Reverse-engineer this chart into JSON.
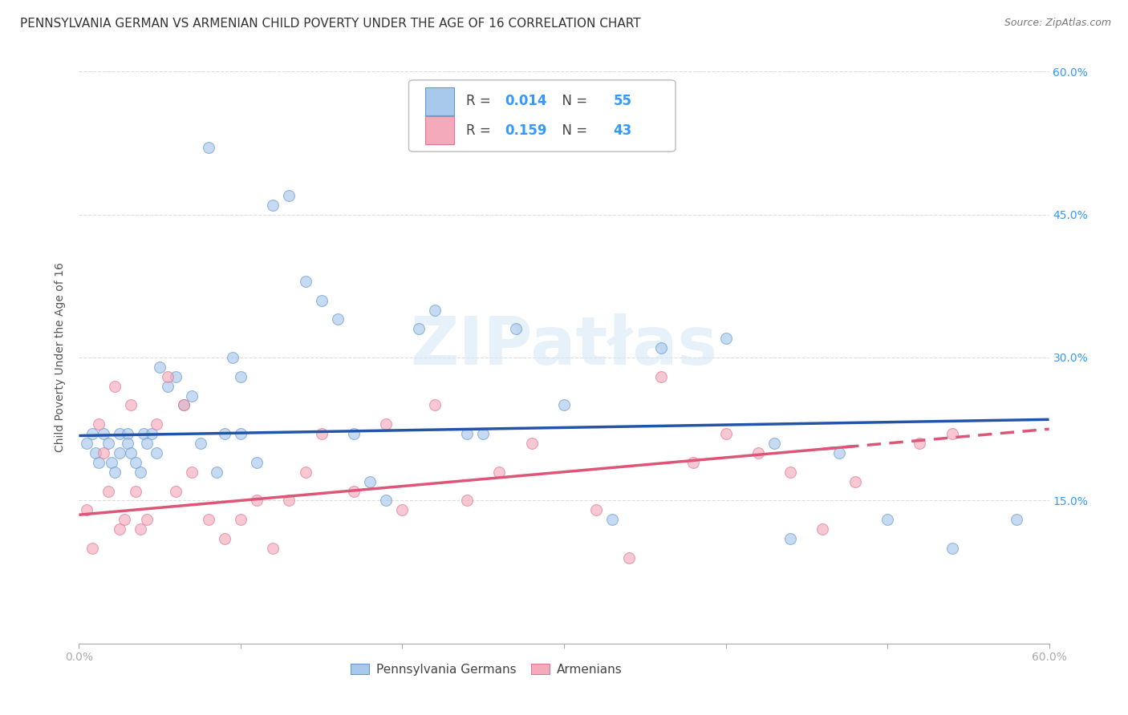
{
  "title": "PENNSYLVANIA GERMAN VS ARMENIAN CHILD POVERTY UNDER THE AGE OF 16 CORRELATION CHART",
  "source": "Source: ZipAtlas.com",
  "ylabel": "Child Poverty Under the Age of 16",
  "xlim": [
    0.0,
    0.6
  ],
  "ylim": [
    0.0,
    0.6
  ],
  "yticks": [
    0.0,
    0.15,
    0.3,
    0.45,
    0.6
  ],
  "ytick_labels": [
    "",
    "15.0%",
    "30.0%",
    "45.0%",
    "60.0%"
  ],
  "xticks": [
    0.0,
    0.1,
    0.2,
    0.3,
    0.4,
    0.5,
    0.6
  ],
  "xtick_labels": [
    "0.0%",
    "",
    "",
    "",
    "",
    "",
    "60.0%"
  ],
  "pg_color": "#A8C8EC",
  "pg_edge_color": "#6699CC",
  "am_color": "#F4AABB",
  "am_edge_color": "#DD7799",
  "pg_line_color": "#2255AA",
  "am_line_color": "#DD5577",
  "R_pg": 0.014,
  "N_pg": 55,
  "R_am": 0.159,
  "N_am": 43,
  "grid_color": "#DDDDDD",
  "background_color": "#FFFFFF",
  "pg_scatter_x": [
    0.005,
    0.008,
    0.01,
    0.012,
    0.015,
    0.018,
    0.02,
    0.022,
    0.025,
    0.025,
    0.03,
    0.03,
    0.032,
    0.035,
    0.038,
    0.04,
    0.042,
    0.045,
    0.048,
    0.05,
    0.055,
    0.06,
    0.065,
    0.07,
    0.075,
    0.08,
    0.085,
    0.09,
    0.095,
    0.1,
    0.1,
    0.11,
    0.12,
    0.13,
    0.14,
    0.15,
    0.16,
    0.17,
    0.18,
    0.19,
    0.21,
    0.22,
    0.24,
    0.25,
    0.27,
    0.3,
    0.33,
    0.36,
    0.4,
    0.43,
    0.44,
    0.47,
    0.5,
    0.54,
    0.58
  ],
  "pg_scatter_y": [
    0.21,
    0.22,
    0.2,
    0.19,
    0.22,
    0.21,
    0.19,
    0.18,
    0.22,
    0.2,
    0.22,
    0.21,
    0.2,
    0.19,
    0.18,
    0.22,
    0.21,
    0.22,
    0.2,
    0.29,
    0.27,
    0.28,
    0.25,
    0.26,
    0.21,
    0.52,
    0.18,
    0.22,
    0.3,
    0.28,
    0.22,
    0.19,
    0.46,
    0.47,
    0.38,
    0.36,
    0.34,
    0.22,
    0.17,
    0.15,
    0.33,
    0.35,
    0.22,
    0.22,
    0.33,
    0.25,
    0.13,
    0.31,
    0.32,
    0.21,
    0.11,
    0.2,
    0.13,
    0.1,
    0.13
  ],
  "am_scatter_x": [
    0.005,
    0.008,
    0.012,
    0.015,
    0.018,
    0.022,
    0.025,
    0.028,
    0.032,
    0.035,
    0.038,
    0.042,
    0.048,
    0.055,
    0.06,
    0.065,
    0.07,
    0.08,
    0.09,
    0.1,
    0.11,
    0.12,
    0.13,
    0.14,
    0.15,
    0.17,
    0.19,
    0.2,
    0.22,
    0.24,
    0.26,
    0.28,
    0.32,
    0.34,
    0.36,
    0.38,
    0.4,
    0.42,
    0.44,
    0.46,
    0.48,
    0.52,
    0.54
  ],
  "am_scatter_y": [
    0.14,
    0.1,
    0.23,
    0.2,
    0.16,
    0.27,
    0.12,
    0.13,
    0.25,
    0.16,
    0.12,
    0.13,
    0.23,
    0.28,
    0.16,
    0.25,
    0.18,
    0.13,
    0.11,
    0.13,
    0.15,
    0.1,
    0.15,
    0.18,
    0.22,
    0.16,
    0.23,
    0.14,
    0.25,
    0.15,
    0.18,
    0.21,
    0.14,
    0.09,
    0.28,
    0.19,
    0.22,
    0.2,
    0.18,
    0.12,
    0.17,
    0.21,
    0.22
  ],
  "legend_entries": [
    "Pennsylvania Germans",
    "Armenians"
  ],
  "title_fontsize": 11,
  "label_fontsize": 10,
  "tick_fontsize": 10,
  "scatter_size": 100,
  "scatter_alpha": 0.65,
  "line_width": 2.5
}
